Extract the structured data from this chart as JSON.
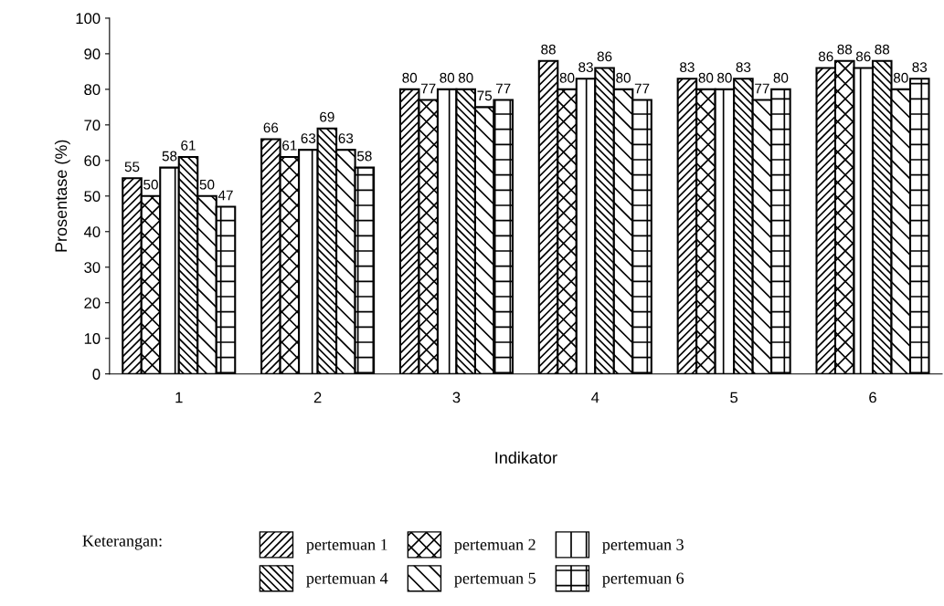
{
  "chart_data": {
    "type": "bar",
    "xlabel": "Indikator",
    "ylabel": "Prosentase (%)",
    "legend_title": "Keterangan:",
    "categories": [
      "1",
      "2",
      "3",
      "4",
      "5",
      "6"
    ],
    "series": [
      {
        "name": "pertemuan 1",
        "color": "#000000",
        "values": [
          55,
          66,
          80,
          88,
          83,
          86
        ]
      },
      {
        "name": "pertemuan 2",
        "color": "#000000",
        "values": [
          50,
          61,
          77,
          80,
          80,
          88
        ]
      },
      {
        "name": "pertemuan 3",
        "color": "#000000",
        "values": [
          58,
          63,
          80,
          83,
          80,
          86
        ]
      },
      {
        "name": "pertemuan 4",
        "color": "#000000",
        "values": [
          61,
          69,
          80,
          86,
          83,
          88
        ]
      },
      {
        "name": "pertemuan 5",
        "color": "#000000",
        "values": [
          50,
          63,
          75,
          80,
          77,
          80
        ]
      },
      {
        "name": "pertemuan 6",
        "color": "#000000",
        "values": [
          47,
          58,
          77,
          77,
          80,
          83
        ]
      }
    ],
    "ylim": [
      0,
      100
    ],
    "yticks": [
      0,
      10,
      20,
      30,
      40,
      50,
      60,
      70,
      80,
      90,
      100
    ],
    "data_labels": true,
    "grid": false,
    "legend": "bottom"
  }
}
